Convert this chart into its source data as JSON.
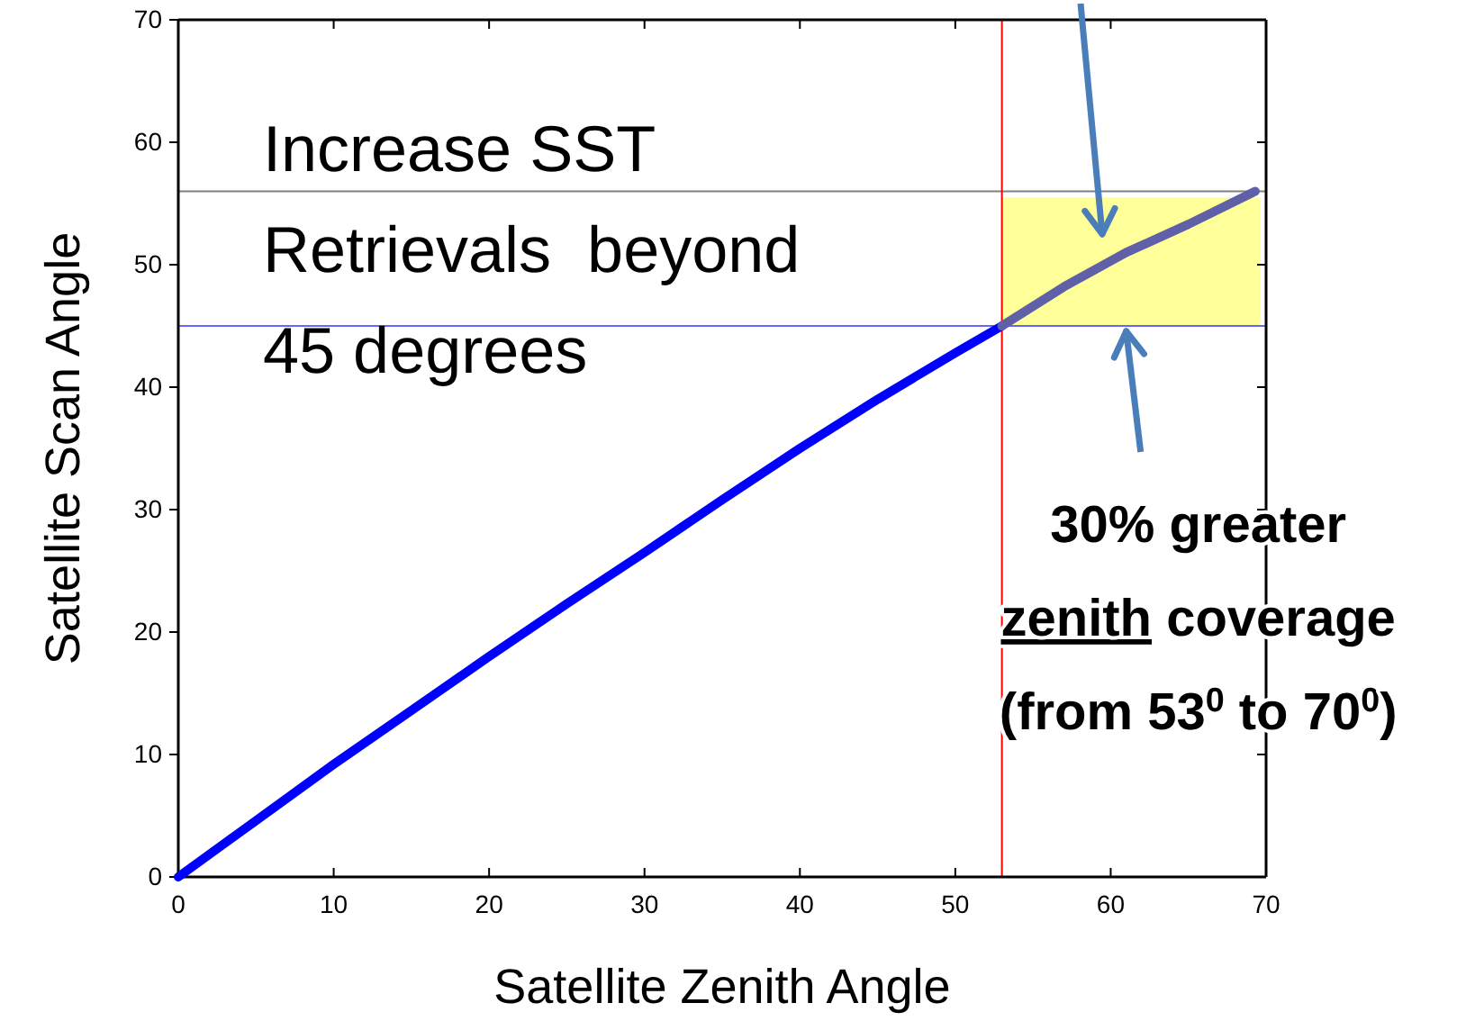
{
  "chart_data": {
    "type": "line",
    "xlabel": "Satellite Zenith Angle",
    "ylabel": "Satellite Scan  Angle",
    "series": [
      {
        "color": "#0000ff",
        "x": [
          0,
          5,
          10,
          15,
          20,
          25,
          30,
          35,
          40,
          45,
          50,
          53
        ],
        "values": [
          0,
          4.6,
          9.2,
          13.6,
          18,
          22.3,
          26.5,
          30.8,
          35,
          39,
          42.8,
          45
        ]
      },
      {
        "color": "#6060a8",
        "x": [
          53,
          57,
          61,
          65,
          69.3
        ],
        "values": [
          45,
          48.2,
          51,
          53.3,
          56
        ]
      }
    ],
    "xlim": [
      0,
      70
    ],
    "ylim": [
      0,
      70
    ],
    "xticks": [
      0,
      10,
      20,
      30,
      40,
      50,
      60,
      70
    ],
    "yticks": [
      0,
      10,
      20,
      30,
      40,
      50,
      60,
      70
    ],
    "grid": false,
    "marker": "none",
    "line_style": "solid",
    "ref_lines": [
      {
        "axis": "y",
        "value": 56,
        "color": "#808080"
      },
      {
        "axis": "y",
        "value": 45,
        "color": "#6666ff"
      },
      {
        "axis": "x",
        "value": 53,
        "color": "#ff0000"
      }
    ],
    "bands": [
      {
        "axis": "y",
        "from": 45,
        "to": 55.5,
        "color": "#ffff99"
      }
    ],
    "annotations": [
      "Increase SST\nRetrievals  beyond\n45 degrees",
      {
        "text": "30% greater\nzenith coverage\n(from 53$^{0}$ to 70$^{0}$)",
        "x": 61,
        "y": 45
      }
    ]
  }
}
